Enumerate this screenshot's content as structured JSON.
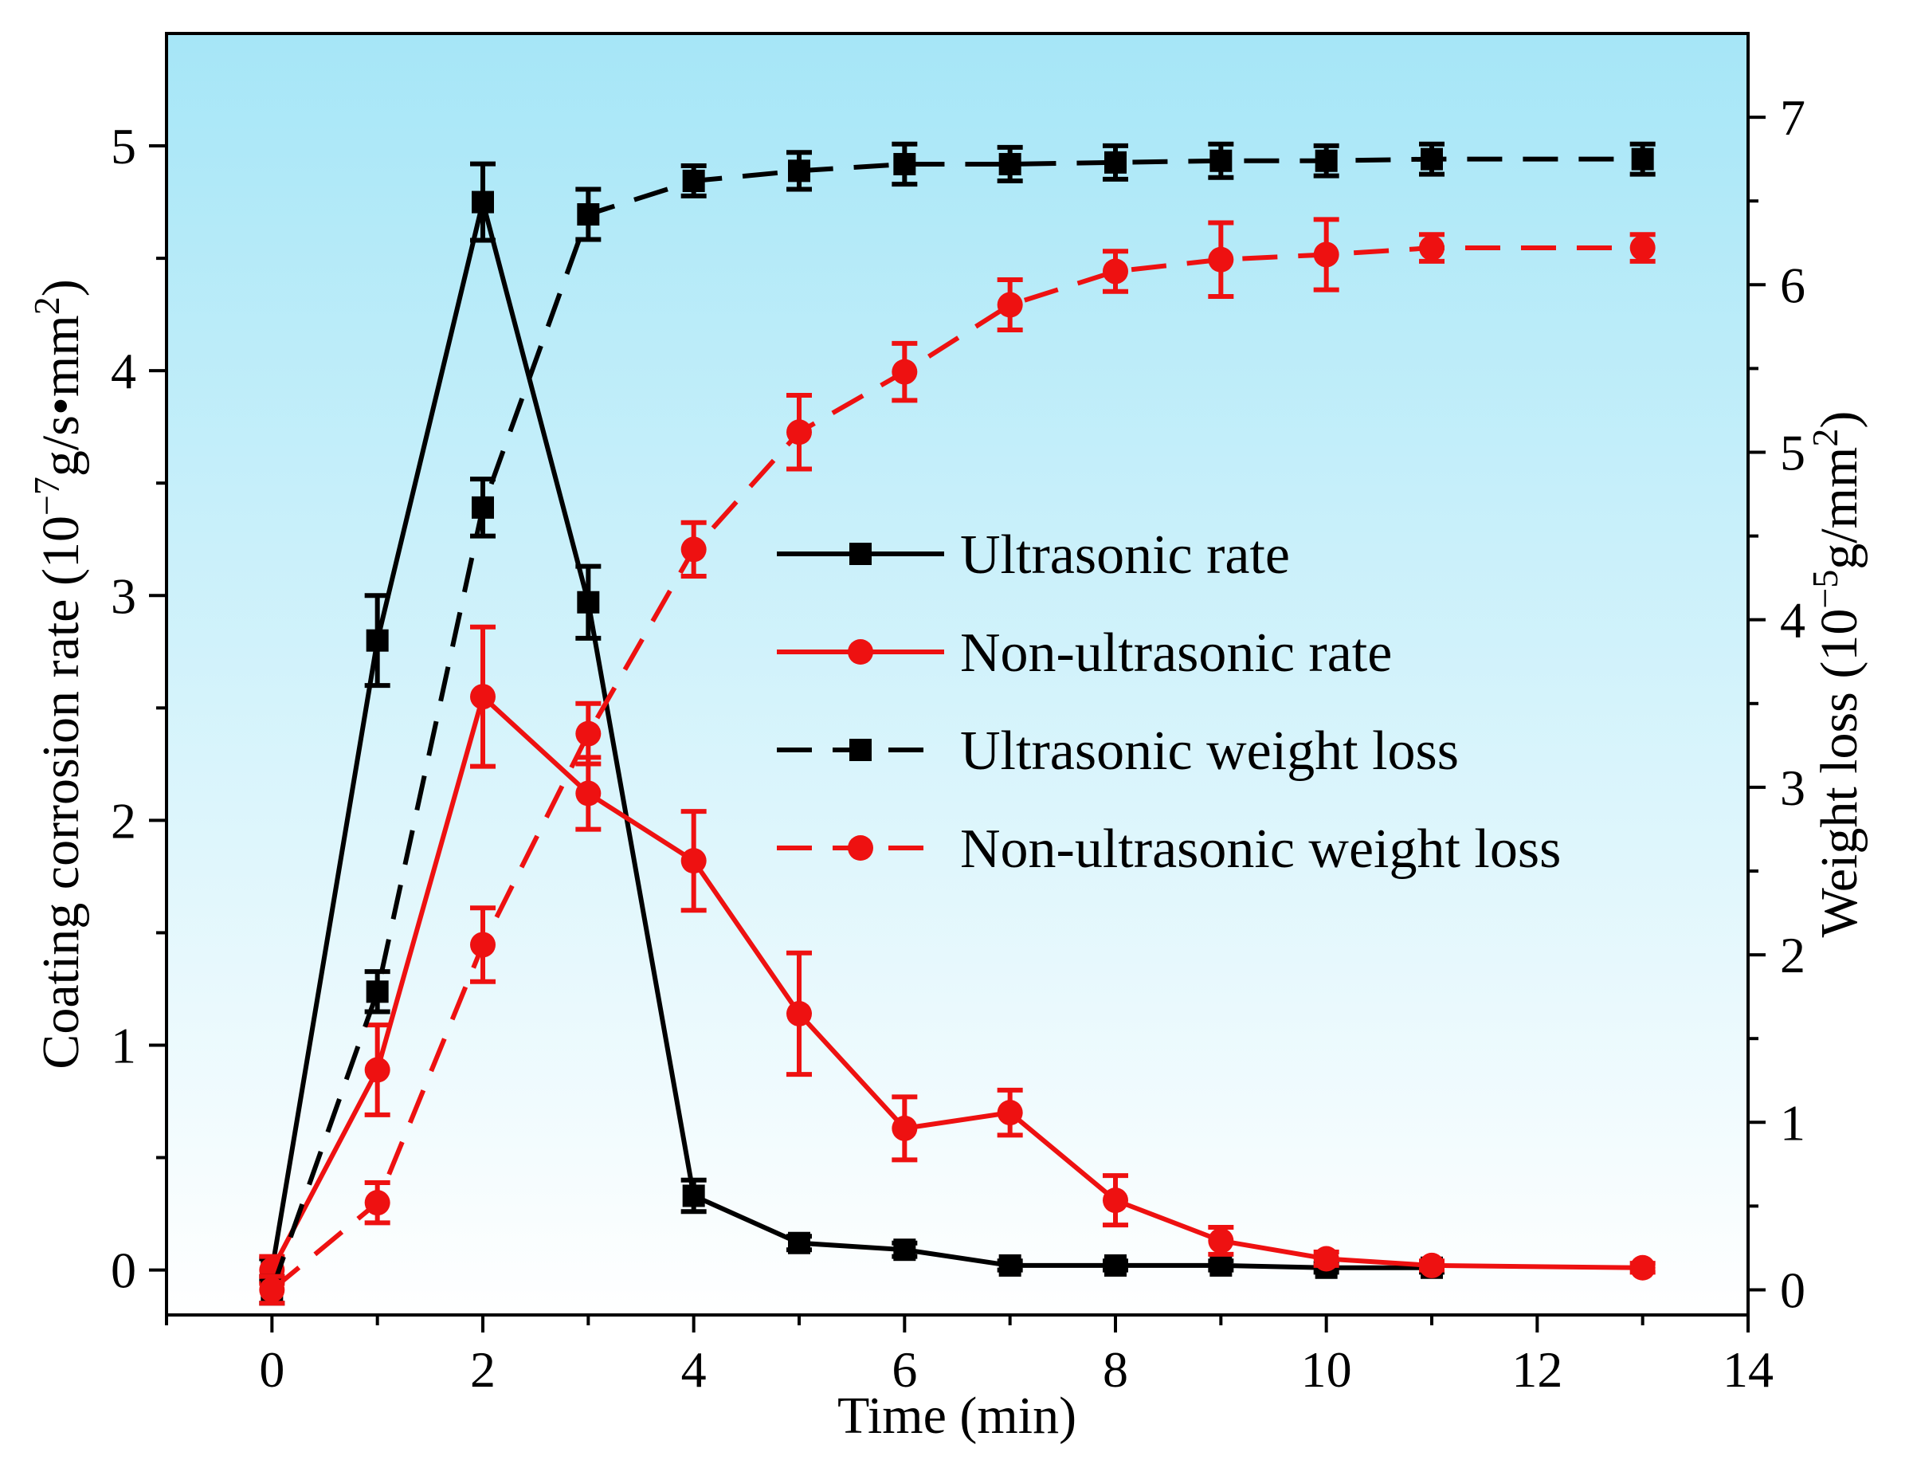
{
  "chart_data": {
    "type": "line",
    "xlabel": "Time (min)",
    "ylabel_left": {
      "text": "Coating corrosion rate (10",
      "sup": "−7",
      "text2": "g/s•mm",
      "sup2": "2",
      "text3": ")"
    },
    "ylabel_right": {
      "text": "Weight loss (10",
      "sup": "−5",
      "text2": "g/mm",
      "sup2": "2",
      "text3": ")"
    },
    "xlim": [
      -1,
      14
    ],
    "ylim_left": [
      -0.2,
      5.5
    ],
    "ylim_right": [
      -0.15,
      7.5
    ],
    "x_ticks": [
      0,
      2,
      4,
      6,
      8,
      10,
      12,
      14
    ],
    "y_left_ticks": [
      0,
      1,
      2,
      3,
      4,
      5
    ],
    "y_right_ticks": [
      0,
      1,
      2,
      3,
      4,
      5,
      6,
      7
    ],
    "legend_position": "center-right",
    "background_gradient": {
      "top": "#a6e6f7",
      "bottom": "#ffffff"
    },
    "series": [
      {
        "name": "Ultrasonic rate",
        "axis": "left",
        "color": "#000000",
        "marker": "square",
        "dash": "solid",
        "x": [
          0,
          1,
          2,
          3,
          4,
          5,
          6,
          7,
          8,
          9,
          10,
          11
        ],
        "y": [
          0,
          2.8,
          4.75,
          2.97,
          0.33,
          0.12,
          0.09,
          0.02,
          0.02,
          0.02,
          0.01,
          0.01
        ],
        "err": [
          0.05,
          0.2,
          0.17,
          0.16,
          0.07,
          0.03,
          0.03,
          0.02,
          0.02,
          0.02,
          0.02,
          0.02
        ]
      },
      {
        "name": "Non-ultrasonic rate",
        "axis": "left",
        "color": "#ee1111",
        "marker": "circle",
        "dash": "solid",
        "x": [
          0,
          1,
          2,
          3,
          4,
          5,
          6,
          7,
          8,
          9,
          10,
          11,
          13
        ],
        "y": [
          0,
          0.89,
          2.55,
          2.12,
          1.82,
          1.14,
          0.63,
          0.7,
          0.31,
          0.13,
          0.05,
          0.02,
          0.01
        ],
        "err": [
          0.06,
          0.2,
          0.31,
          0.16,
          0.22,
          0.27,
          0.14,
          0.1,
          0.11,
          0.06,
          0.03,
          0.02,
          0.02
        ]
      },
      {
        "name": "Ultrasonic weight loss",
        "axis": "right",
        "color": "#000000",
        "marker": "square",
        "dash": "dashed",
        "x": [
          0,
          1,
          2,
          3,
          4,
          5,
          6,
          7,
          8,
          9,
          10,
          11,
          13
        ],
        "y": [
          0,
          1.78,
          4.67,
          6.42,
          6.62,
          6.68,
          6.72,
          6.72,
          6.73,
          6.74,
          6.74,
          6.75,
          6.75
        ],
        "err": [
          0.08,
          0.12,
          0.17,
          0.15,
          0.09,
          0.11,
          0.12,
          0.1,
          0.1,
          0.1,
          0.09,
          0.09,
          0.09
        ]
      },
      {
        "name": "Non-ultrasonic weight loss",
        "axis": "right",
        "color": "#ee1111",
        "marker": "circle",
        "dash": "dashed",
        "x": [
          0,
          1,
          2,
          3,
          4,
          5,
          6,
          7,
          8,
          9,
          10,
          11,
          13
        ],
        "y": [
          0,
          0.52,
          2.06,
          3.32,
          4.42,
          5.12,
          5.48,
          5.88,
          6.08,
          6.15,
          6.18,
          6.22,
          6.22
        ],
        "err": [
          0.08,
          0.12,
          0.22,
          0.18,
          0.16,
          0.22,
          0.17,
          0.15,
          0.12,
          0.22,
          0.21,
          0.08,
          0.08
        ]
      }
    ]
  }
}
